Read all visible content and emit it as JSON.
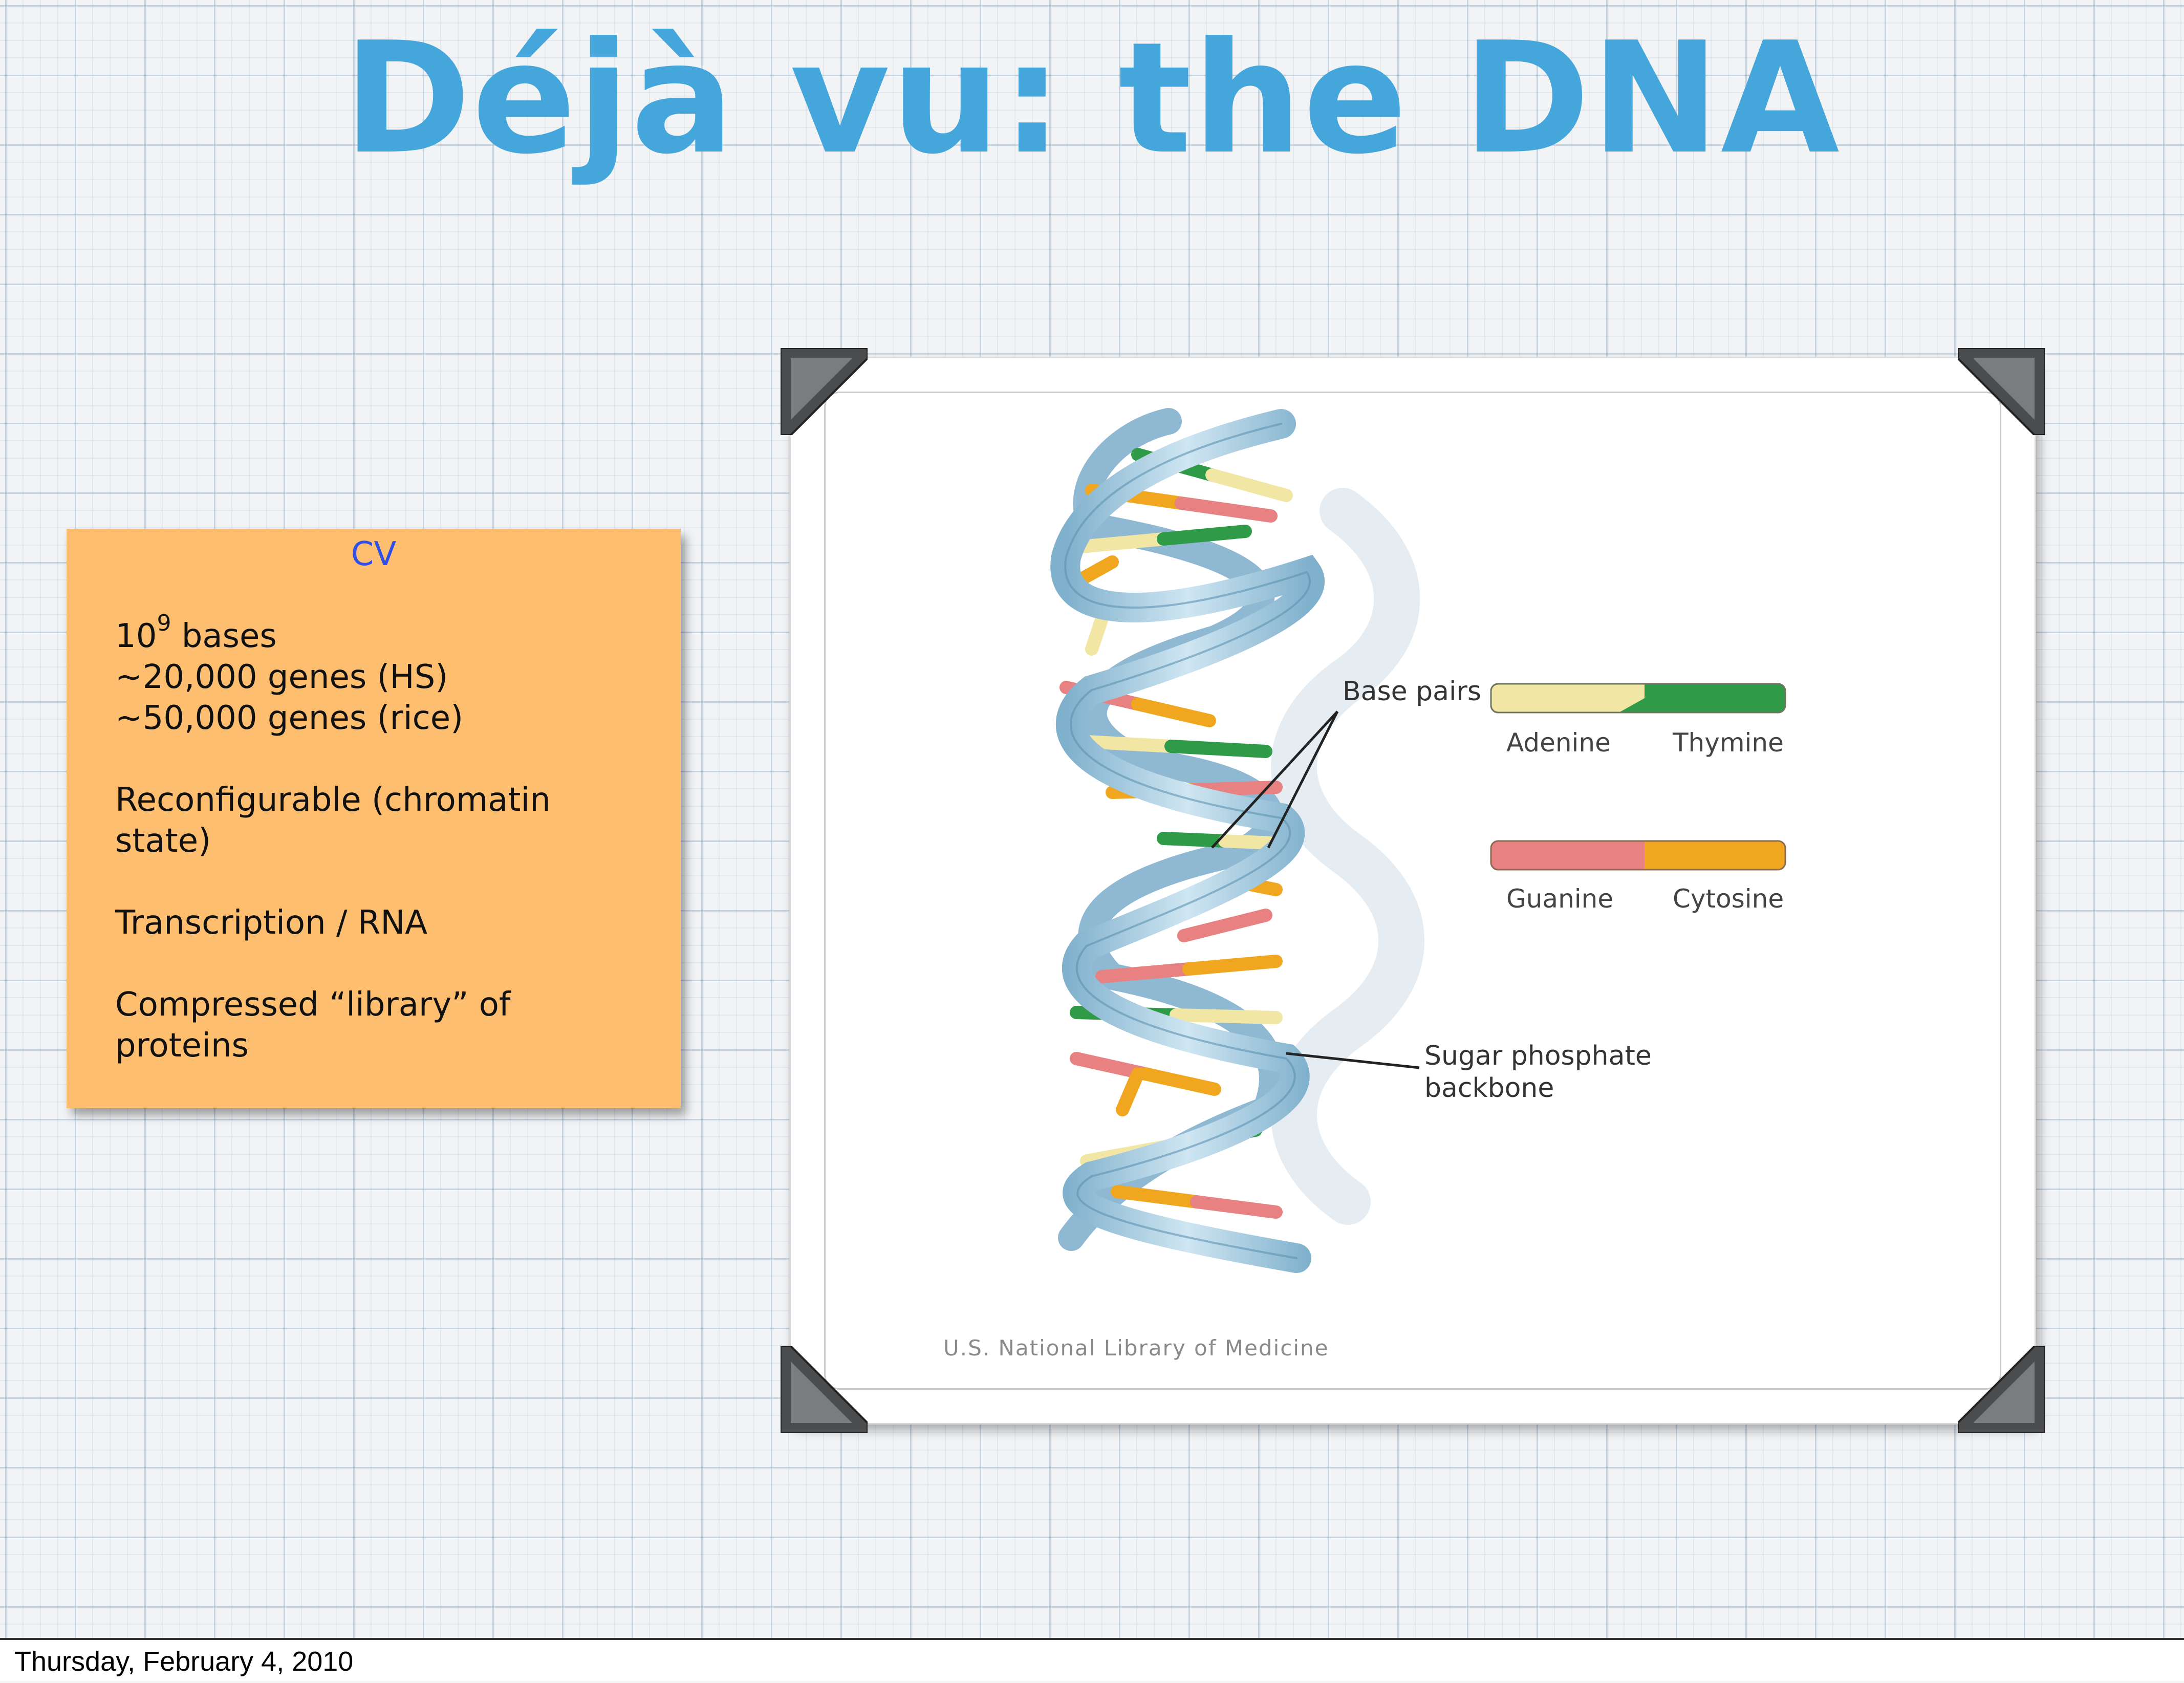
{
  "slide": {
    "title": "Déjà vu: the DNA"
  },
  "note": {
    "heading": "CV",
    "bases_prefix": "10",
    "bases_exponent": "9",
    "bases_suffix": " bases",
    "genes_hs": "~20,000 genes (HS)",
    "genes_rice": "~50,000 genes (rice)",
    "reconfig_line1": "Reconfigurable (chromatin",
    "reconfig_line2": "state)",
    "transcription": "Transcription / RNA",
    "library_line1": "Compressed “library” of",
    "library_line2": "proteins"
  },
  "figure": {
    "base_pairs_label": "Base pairs",
    "adenine": "Adenine",
    "thymine": "Thymine",
    "guanine": "Guanine",
    "cytosine": "Cytosine",
    "backbone_line1": "Sugar phosphate",
    "backbone_line2": "backbone",
    "credit": "U.S. National Library of Medicine",
    "colors": {
      "adenine": "#f2e6a4",
      "thymine": "#2f9a48",
      "guanine": "#e88282",
      "cytosine": "#f0a61e",
      "backbone": "#aacde0"
    }
  },
  "footer": {
    "date": "Thursday, February 4, 2010"
  }
}
